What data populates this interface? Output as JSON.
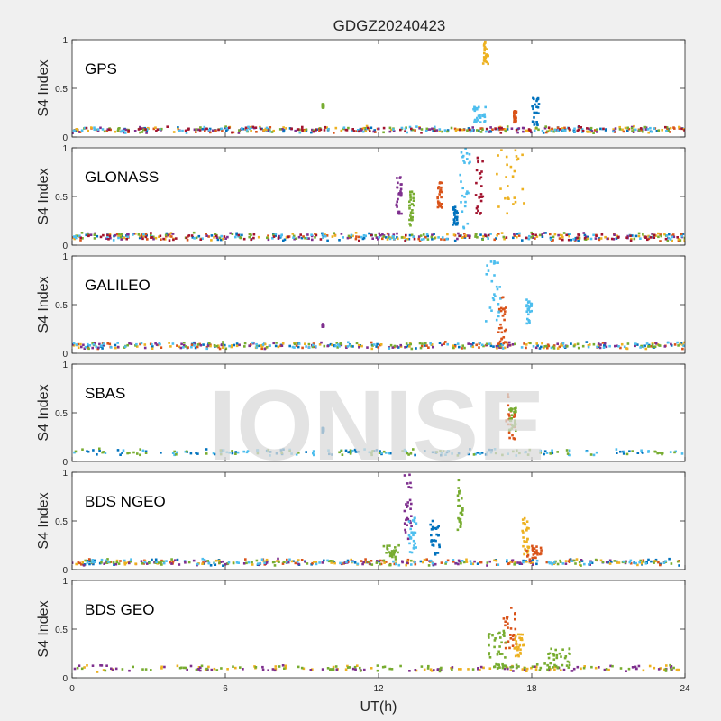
{
  "title": "GDGZ20240423",
  "watermark": "IONISE",
  "xlabel": "UT(h)",
  "xlim": [
    0,
    24
  ],
  "xticks": [
    0,
    6,
    12,
    18,
    24
  ],
  "ylabel": "S4 Index",
  "ylim": [
    0,
    1
  ],
  "yticks": [
    0,
    0.5,
    1
  ],
  "colors": {
    "figure_background": "#f0f0f0",
    "axes_background": "#ffffff",
    "axis_color": "#262626",
    "watermark_color": "#d9d9d9",
    "series_palette": [
      "#0072BD",
      "#D95319",
      "#EDB120",
      "#7E2F8E",
      "#77AC30",
      "#4DBEEE",
      "#A2142F"
    ]
  },
  "chart_data": [
    {
      "type": "scatter",
      "panel_label": "GPS",
      "baseline": [
        0.03,
        0.12
      ],
      "series_colors": [
        "#0072BD",
        "#D95319",
        "#EDB120",
        "#7E2F8E",
        "#77AC30",
        "#4DBEEE",
        "#A2142F"
      ],
      "enhancements": [
        {
          "color": "#EDB120",
          "t": [
            16.1,
            16.3
          ],
          "y": [
            0.75,
            1.0
          ]
        },
        {
          "color": "#4DBEEE",
          "t": [
            15.7,
            16.2
          ],
          "y": [
            0.15,
            0.33
          ]
        },
        {
          "color": "#0072BD",
          "t": [
            18.0,
            18.3
          ],
          "y": [
            0.12,
            0.4
          ]
        },
        {
          "color": "#D95319",
          "t": [
            17.3,
            17.4
          ],
          "y": [
            0.15,
            0.27
          ]
        },
        {
          "color": "#77AC30",
          "t": [
            9.8,
            9.85
          ],
          "y": [
            0.3,
            0.34
          ]
        }
      ]
    },
    {
      "type": "scatter",
      "panel_label": "GLONASS",
      "baseline": [
        0.02,
        0.15
      ],
      "series_colors": [
        "#0072BD",
        "#D95319",
        "#EDB120",
        "#7E2F8E",
        "#77AC30",
        "#4DBEEE",
        "#A2142F"
      ],
      "enhancements": [
        {
          "color": "#EDB120",
          "t": [
            16.6,
            17.7
          ],
          "y": [
            0.3,
            1.0
          ]
        },
        {
          "color": "#4DBEEE",
          "t": [
            15.2,
            15.6
          ],
          "y": [
            0.15,
            1.0
          ]
        },
        {
          "color": "#A2142F",
          "t": [
            15.8,
            16.1
          ],
          "y": [
            0.3,
            0.95
          ]
        },
        {
          "color": "#D95319",
          "t": [
            14.3,
            14.5
          ],
          "y": [
            0.35,
            0.65
          ]
        },
        {
          "color": "#7E2F8E",
          "t": [
            12.7,
            12.9
          ],
          "y": [
            0.3,
            0.7
          ]
        },
        {
          "color": "#77AC30",
          "t": [
            13.2,
            13.4
          ],
          "y": [
            0.2,
            0.55
          ]
        },
        {
          "color": "#0072BD",
          "t": [
            14.9,
            15.1
          ],
          "y": [
            0.2,
            0.4
          ]
        }
      ]
    },
    {
      "type": "scatter",
      "panel_label": "GALILEO",
      "baseline": [
        0.03,
        0.13
      ],
      "series_colors": [
        "#0072BD",
        "#D95319",
        "#EDB120",
        "#7E2F8E",
        "#77AC30",
        "#4DBEEE"
      ],
      "enhancements": [
        {
          "color": "#4DBEEE",
          "t": [
            16.2,
            16.8
          ],
          "y": [
            0.3,
            0.97
          ]
        },
        {
          "color": "#4DBEEE",
          "t": [
            17.8,
            18.0
          ],
          "y": [
            0.3,
            0.55
          ]
        },
        {
          "color": "#D95319",
          "t": [
            16.7,
            17.0
          ],
          "y": [
            0.1,
            0.6
          ]
        },
        {
          "color": "#7E2F8E",
          "t": [
            9.8,
            9.85
          ],
          "y": [
            0.27,
            0.3
          ]
        }
      ]
    },
    {
      "type": "scatter",
      "panel_label": "SBAS",
      "baseline": [
        0.05,
        0.14
      ],
      "series_colors": [
        "#0072BD",
        "#4DBEEE",
        "#77AC30"
      ],
      "enhancements": [
        {
          "color": "#D95319",
          "t": [
            17.0,
            17.4
          ],
          "y": [
            0.2,
            0.7
          ]
        },
        {
          "color": "#77AC30",
          "t": [
            17.1,
            17.4
          ],
          "y": [
            0.3,
            0.55
          ]
        },
        {
          "color": "#0072BD",
          "t": [
            9.8,
            9.85
          ],
          "y": [
            0.3,
            0.35
          ]
        }
      ]
    },
    {
      "type": "scatter",
      "panel_label": "BDS NGEO",
      "baseline": [
        0.03,
        0.12
      ],
      "series_colors": [
        "#0072BD",
        "#D95319",
        "#EDB120",
        "#7E2F8E",
        "#77AC30",
        "#4DBEEE"
      ],
      "enhancements": [
        {
          "color": "#7E2F8E",
          "t": [
            13.0,
            13.3
          ],
          "y": [
            0.3,
            1.0
          ]
        },
        {
          "color": "#77AC30",
          "t": [
            15.1,
            15.3
          ],
          "y": [
            0.4,
            0.93
          ]
        },
        {
          "color": "#4DBEEE",
          "t": [
            13.2,
            13.5
          ],
          "y": [
            0.15,
            0.55
          ]
        },
        {
          "color": "#0072BD",
          "t": [
            14.0,
            14.4
          ],
          "y": [
            0.15,
            0.5
          ]
        },
        {
          "color": "#EDB120",
          "t": [
            17.6,
            17.9
          ],
          "y": [
            0.15,
            0.55
          ]
        },
        {
          "color": "#D95319",
          "t": [
            17.8,
            18.4
          ],
          "y": [
            0.1,
            0.25
          ]
        },
        {
          "color": "#77AC30",
          "t": [
            12.2,
            12.8
          ],
          "y": [
            0.1,
            0.25
          ]
        }
      ]
    },
    {
      "type": "scatter",
      "panel_label": "BDS GEO",
      "baseline": [
        0.05,
        0.14
      ],
      "series_colors": [
        "#EDB120",
        "#7E2F8E",
        "#77AC30"
      ],
      "enhancements": [
        {
          "color": "#D95319",
          "t": [
            16.9,
            17.4
          ],
          "y": [
            0.3,
            0.72
          ]
        },
        {
          "color": "#EDB120",
          "t": [
            17.3,
            17.7
          ],
          "y": [
            0.2,
            0.45
          ]
        },
        {
          "color": "#77AC30",
          "t": [
            16.3,
            17.0
          ],
          "y": [
            0.2,
            0.5
          ]
        },
        {
          "color": "#77AC30",
          "t": [
            18.5,
            19.5
          ],
          "y": [
            0.12,
            0.3
          ]
        },
        {
          "color": "#77AC30",
          "t": [
            16.5,
            19.5
          ],
          "y": [
            0.1,
            0.14
          ]
        }
      ]
    }
  ]
}
